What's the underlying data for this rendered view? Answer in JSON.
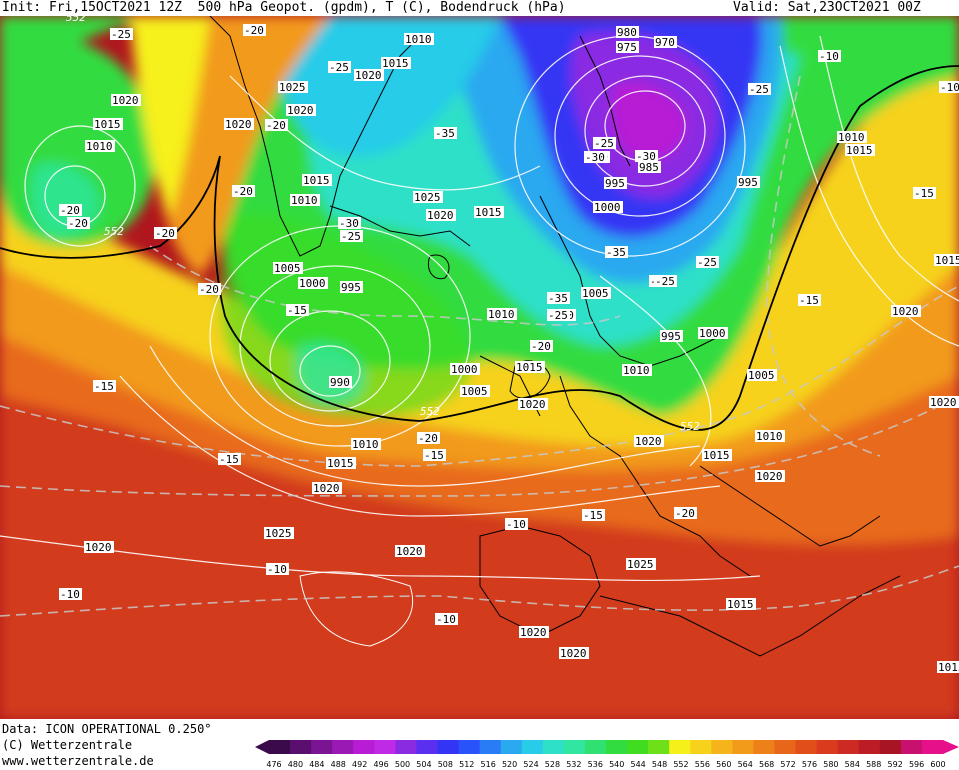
{
  "header": {
    "init": "Init: Fri,15OCT2021 12Z",
    "title": "500 hPa Geopot. (gpdm), T (C), Bodendruck (hPa)",
    "valid": "Valid: Sat,23OCT2021 00Z"
  },
  "footer": {
    "data_line": "Data: ICON OPERATIONAL 0.250°",
    "copyright": "(C) Wetterzentrale",
    "url": "www.wetterzentrale.de"
  },
  "colorbar": {
    "ticks": [
      "476",
      "480",
      "484",
      "488",
      "492",
      "496",
      "500",
      "504",
      "508",
      "512",
      "516",
      "520",
      "524",
      "528",
      "532",
      "536",
      "540",
      "544",
      "548",
      "552",
      "556",
      "560",
      "564",
      "568",
      "572",
      "576",
      "580",
      "584",
      "588",
      "592",
      "596",
      "600"
    ],
    "colors": [
      "#3a0a4a",
      "#5a0f6e",
      "#7a1492",
      "#9a18b4",
      "#b81cd4",
      "#c02ae6",
      "#8a2be2",
      "#5a2ff0",
      "#3434f4",
      "#2a52fa",
      "#2a7cf6",
      "#2aa8f0",
      "#28cce8",
      "#2ee0c8",
      "#30e6a0",
      "#30e070",
      "#30dc40",
      "#40dc20",
      "#6ee01a",
      "#f6f01a",
      "#f6d21a",
      "#f4b41a",
      "#f29a1a",
      "#ee801a",
      "#e8661a",
      "#e24e1a",
      "#da3a1e",
      "#cc2a22",
      "#bc1c24",
      "#a81424",
      "#c8106e",
      "#e6108a"
    ]
  },
  "map_labels": {
    "pressure": [
      {
        "t": "1010"
      },
      {
        "t": "1015"
      },
      {
        "t": "1020"
      },
      {
        "t": "1025"
      },
      {
        "t": "1020"
      },
      {
        "t": "1020"
      },
      {
        "t": "1020"
      },
      {
        "t": "1015"
      },
      {
        "t": "1010"
      },
      {
        "t": "1015"
      },
      {
        "t": "1010"
      },
      {
        "t": "1025"
      },
      {
        "t": "1020"
      },
      {
        "t": "1015"
      },
      {
        "t": "980"
      },
      {
        "t": "975"
      },
      {
        "t": "970"
      },
      {
        "t": "990"
      },
      {
        "t": "985"
      },
      {
        "t": "995"
      },
      {
        "t": "1000"
      },
      {
        "t": "995"
      },
      {
        "t": "1010"
      },
      {
        "t": "1015"
      },
      {
        "t": "1005"
      },
      {
        "t": "1000"
      },
      {
        "t": "995"
      },
      {
        "t": "990"
      },
      {
        "t": "1010"
      },
      {
        "t": "1005"
      },
      {
        "t": "1000"
      },
      {
        "t": "995"
      },
      {
        "t": "1010"
      },
      {
        "t": "1000"
      },
      {
        "t": "1005"
      },
      {
        "t": "1015"
      },
      {
        "t": "1020"
      },
      {
        "t": "1010"
      },
      {
        "t": "1015"
      },
      {
        "t": "1020"
      },
      {
        "t": "1005"
      },
      {
        "t": "1010"
      },
      {
        "t": "1015"
      },
      {
        "t": "1020"
      },
      {
        "t": "1025"
      },
      {
        "t": "1020"
      },
      {
        "t": "1020"
      },
      {
        "t": "1025"
      },
      {
        "t": "1020"
      },
      {
        "t": "1020"
      },
      {
        "t": "1015"
      },
      {
        "t": "1020"
      },
      {
        "t": "1020"
      },
      {
        "t": "1015"
      },
      {
        "t": "1015"
      },
      {
        "t": "1020"
      }
    ],
    "temperature": [
      {
        "t": "-25"
      },
      {
        "t": "-20"
      },
      {
        "t": "-25"
      },
      {
        "t": "-20"
      },
      {
        "t": "-30"
      },
      {
        "t": "-25"
      },
      {
        "t": "-20"
      },
      {
        "t": "-20"
      },
      {
        "t": "-35"
      },
      {
        "t": "-30"
      },
      {
        "t": "-25"
      },
      {
        "t": "-25"
      },
      {
        "t": "-30"
      },
      {
        "t": "-35"
      },
      {
        "t": "-35"
      },
      {
        "t": "-30"
      },
      {
        "t": "-25"
      },
      {
        "t": "-30"
      },
      {
        "t": "-25"
      },
      {
        "t": "-20"
      },
      {
        "t": "-25"
      },
      {
        "t": "-20"
      },
      {
        "t": "-15"
      },
      {
        "t": "-15"
      },
      {
        "t": "-20"
      },
      {
        "t": "-15"
      },
      {
        "t": "-10"
      },
      {
        "t": "-15"
      },
      {
        "t": "-20"
      },
      {
        "t": "-10"
      },
      {
        "t": "-10"
      },
      {
        "t": "-10"
      },
      {
        "t": "-15"
      },
      {
        "t": "-15"
      },
      {
        "t": "-10"
      },
      {
        "t": "-10"
      },
      {
        "t": "-15"
      },
      {
        "t": "-20"
      },
      {
        "t": "-20"
      }
    ],
    "geopot": [
      {
        "t": "552"
      },
      {
        "t": "552"
      },
      {
        "t": "552"
      },
      {
        "t": "552"
      }
    ]
  }
}
